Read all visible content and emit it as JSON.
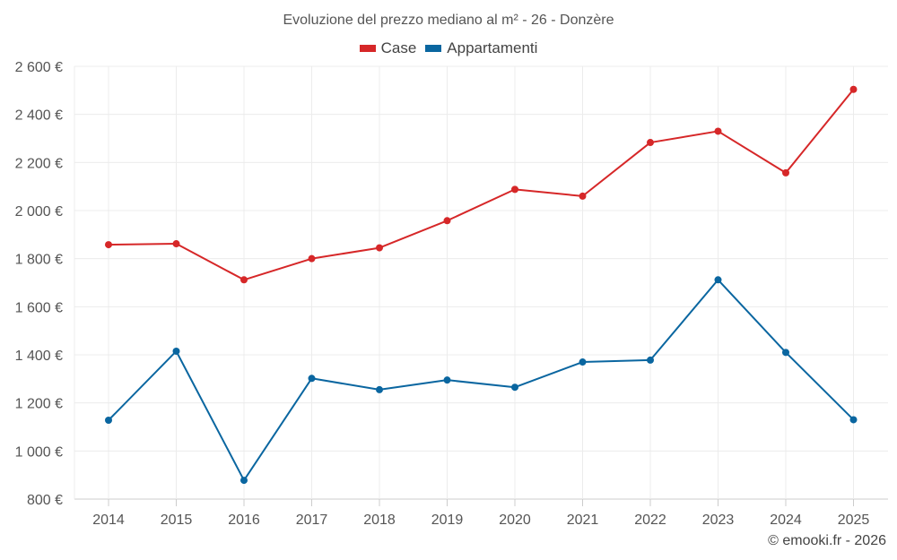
{
  "chart_data": {
    "type": "line",
    "title": "Evoluzione del prezzo mediano al m² - 26 - Donzère",
    "xlabel": "",
    "ylabel": "",
    "categories": [
      "2014",
      "2015",
      "2016",
      "2017",
      "2018",
      "2019",
      "2020",
      "2021",
      "2022",
      "2023",
      "2024",
      "2025"
    ],
    "series": [
      {
        "name": "Case",
        "color": "#d62728",
        "values": [
          1858,
          1862,
          1712,
          1800,
          1845,
          1958,
          2088,
          2060,
          2283,
          2330,
          2157,
          2504
        ]
      },
      {
        "name": "Appartamenti",
        "color": "#0a66a0",
        "values": [
          1128,
          1415,
          878,
          1302,
          1255,
          1295,
          1265,
          1370,
          1378,
          1712,
          1410,
          1130
        ]
      }
    ],
    "ylim": [
      800,
      2600
    ],
    "yticks": [
      800,
      1000,
      1200,
      1400,
      1600,
      1800,
      2000,
      2200,
      2400,
      2600
    ],
    "ytick_labels": [
      "800 €",
      "1 000 €",
      "1 200 €",
      "1 400 €",
      "1 600 €",
      "1 800 €",
      "2 000 €",
      "2 200 €",
      "2 400 €",
      "2 600 €"
    ],
    "grid": true,
    "legend_position": "top-center"
  },
  "credit": "© emooki.fr - 2026"
}
